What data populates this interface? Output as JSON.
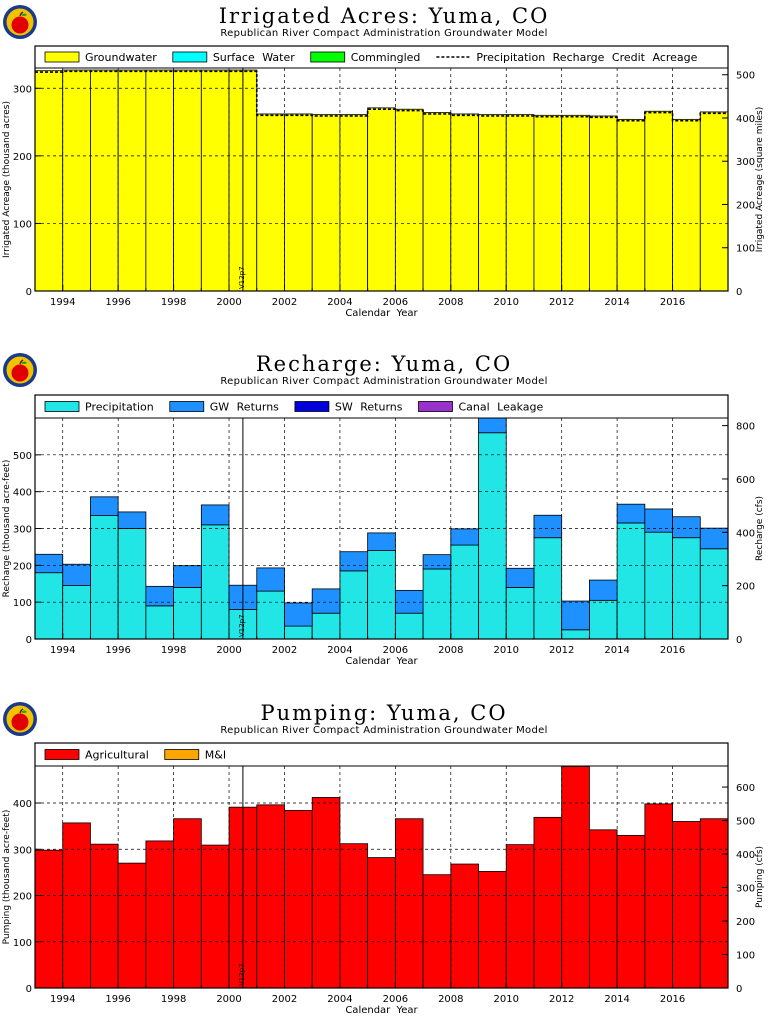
{
  "chart_data": [
    {
      "id": "irrigated",
      "type": "area",
      "title": "Irrigated Acres: Yuma, CO",
      "subtitle": "Republican River Compact Administration Groundwater Model",
      "xlabel": "Calendar Year",
      "ylabel": "Irrigated Acreage (thousand acres)",
      "ylabel_right": "Irrigated Acreage (square miles)",
      "ylim": [
        0,
        330
      ],
      "ylim_right": [
        0,
        515.6
      ],
      "xlim": [
        1993,
        2018
      ],
      "yticks": [
        0,
        100,
        200,
        300
      ],
      "yticks_right": [
        0,
        100,
        200,
        300,
        400,
        500
      ],
      "xticks": [
        "1994",
        "1996",
        "1998",
        "2000",
        "2002",
        "2004",
        "2006",
        "2008",
        "2010",
        "2012",
        "2014",
        "2016"
      ],
      "grid": true,
      "legend_position": "top",
      "annotation": "V12p7",
      "annotation_x": 2000.5,
      "x": [
        1993,
        1994,
        1995,
        1996,
        1997,
        1998,
        1999,
        2000,
        2001,
        2002,
        2003,
        2004,
        2005,
        2006,
        2007,
        2008,
        2009,
        2010,
        2011,
        2012,
        2013,
        2014,
        2015,
        2016,
        2017
      ],
      "series": [
        {
          "name": "Groundwater",
          "color": "#ffff00",
          "kind": "stack",
          "values": [
            326,
            327,
            327,
            327,
            327,
            327,
            327,
            327,
            262,
            262,
            261,
            261,
            271,
            269,
            264,
            262,
            261,
            261,
            260,
            260,
            259,
            254,
            266,
            254,
            265
          ]
        },
        {
          "name": "Surface Water",
          "color": "#00ffff",
          "kind": "stack",
          "values": [
            0,
            0,
            0,
            0,
            0,
            0,
            0,
            0,
            0,
            0,
            0,
            0,
            0,
            0,
            0,
            0,
            0,
            0,
            0,
            0,
            0,
            0,
            0,
            0,
            0
          ]
        },
        {
          "name": "Commingled",
          "color": "#00ff00",
          "kind": "stack",
          "values": [
            0,
            0,
            0,
            0,
            0,
            0,
            0,
            0,
            0,
            0,
            0,
            0,
            0,
            0,
            0,
            0,
            0,
            0,
            0,
            0,
            0,
            0,
            0,
            0,
            0
          ]
        },
        {
          "name": "Precipitation Recharge Credit Acreage",
          "color": "#000000",
          "kind": "dashed",
          "values": [
            324,
            325,
            325,
            325,
            325,
            325,
            325,
            325,
            260,
            260,
            259,
            259,
            269,
            267,
            262,
            260,
            259,
            259,
            258,
            258,
            257,
            252,
            264,
            252,
            263
          ]
        }
      ]
    },
    {
      "id": "recharge",
      "type": "area",
      "title": "Recharge: Yuma, CO",
      "subtitle": "Republican River Compact Administration Groundwater Model",
      "xlabel": "Calendar Year",
      "ylabel": "Recharge (thousand acre-feet)",
      "ylabel_right": "Recharge (cfs)",
      "ylim": [
        0,
        600
      ],
      "ylim_right": [
        0,
        828.6
      ],
      "xlim": [
        1993,
        2018
      ],
      "yticks": [
        0,
        100,
        200,
        300,
        400,
        500
      ],
      "yticks_right": [
        0,
        200,
        400,
        600,
        800
      ],
      "xticks": [
        "1994",
        "1996",
        "1998",
        "2000",
        "2002",
        "2004",
        "2006",
        "2008",
        "2010",
        "2012",
        "2014",
        "2016"
      ],
      "grid": true,
      "legend_position": "top",
      "annotation": "V12p7",
      "annotation_x": 2000.5,
      "x": [
        1993,
        1994,
        1995,
        1996,
        1997,
        1998,
        1999,
        2000,
        2001,
        2002,
        2003,
        2004,
        2005,
        2006,
        2007,
        2008,
        2009,
        2010,
        2011,
        2012,
        2013,
        2014,
        2015,
        2016,
        2017
      ],
      "series": [
        {
          "name": "Precipitation",
          "color": "#22e6e6",
          "kind": "stack",
          "values": [
            180,
            145,
            335,
            300,
            90,
            140,
            310,
            80,
            130,
            35,
            70,
            185,
            240,
            70,
            190,
            255,
            560,
            140,
            275,
            25,
            105,
            315,
            290,
            275,
            245
          ]
        },
        {
          "name": "GW Returns",
          "color": "#1e90ff",
          "kind": "stack",
          "values": [
            50,
            58,
            51,
            45,
            53,
            59,
            54,
            66,
            63,
            63,
            66,
            52,
            48,
            62,
            39,
            44,
            40,
            52,
            61,
            78,
            55,
            51,
            63,
            57,
            56
          ]
        },
        {
          "name": "SW Returns",
          "color": "#0000dd",
          "kind": "stack",
          "values": [
            0,
            0,
            0,
            0,
            0,
            0,
            0,
            0,
            0,
            0,
            0,
            0,
            0,
            0,
            0,
            0,
            0,
            0,
            0,
            0,
            0,
            0,
            0,
            0,
            0
          ]
        },
        {
          "name": "Canal Leakage",
          "color": "#9932cc",
          "kind": "stack",
          "values": [
            0,
            0,
            0,
            0,
            0,
            0,
            0,
            0,
            0,
            0,
            0,
            0,
            0,
            0,
            0,
            0,
            0,
            0,
            0,
            0,
            0,
            0,
            0,
            0,
            0
          ]
        }
      ]
    },
    {
      "id": "pumping",
      "type": "area",
      "title": "Pumping: Yuma, CO",
      "subtitle": "Republican River Compact Administration Groundwater Model",
      "xlabel": "Calendar Year",
      "ylabel": "Pumping (thousand acre-feet)",
      "ylabel_right": "Pumping (cfs)",
      "ylim": [
        0,
        480
      ],
      "ylim_right": [
        0,
        662.9
      ],
      "xlim": [
        1993,
        2018
      ],
      "yticks": [
        0,
        100,
        200,
        300,
        400
      ],
      "yticks_right": [
        0,
        100,
        200,
        300,
        400,
        500,
        600
      ],
      "xticks": [
        "1994",
        "1996",
        "1998",
        "2000",
        "2002",
        "2004",
        "2006",
        "2008",
        "2010",
        "2012",
        "2014",
        "2016"
      ],
      "grid": true,
      "legend_position": "top",
      "annotation": "V12p7",
      "annotation_x": 2000.5,
      "x": [
        1993,
        1994,
        1995,
        1996,
        1997,
        1998,
        1999,
        2000,
        2001,
        2002,
        2003,
        2004,
        2005,
        2006,
        2007,
        2008,
        2009,
        2010,
        2011,
        2012,
        2013,
        2014,
        2015,
        2016,
        2017
      ],
      "series": [
        {
          "name": "Agricultural",
          "color": "#ff0000",
          "kind": "stack",
          "values": [
            298,
            357,
            311,
            270,
            318,
            366,
            309,
            391,
            396,
            384,
            412,
            312,
            282,
            366,
            245,
            268,
            252,
            310,
            369,
            479,
            342,
            330,
            398,
            360,
            366
          ]
        },
        {
          "name": "M&I",
          "color": "#ffa500",
          "kind": "stack",
          "values": [
            0,
            0,
            0,
            0,
            0,
            0,
            0,
            0,
            0,
            0,
            0,
            0,
            0,
            0,
            0,
            0,
            0,
            0,
            0,
            0,
            0,
            0,
            0,
            0,
            0
          ]
        }
      ]
    }
  ]
}
